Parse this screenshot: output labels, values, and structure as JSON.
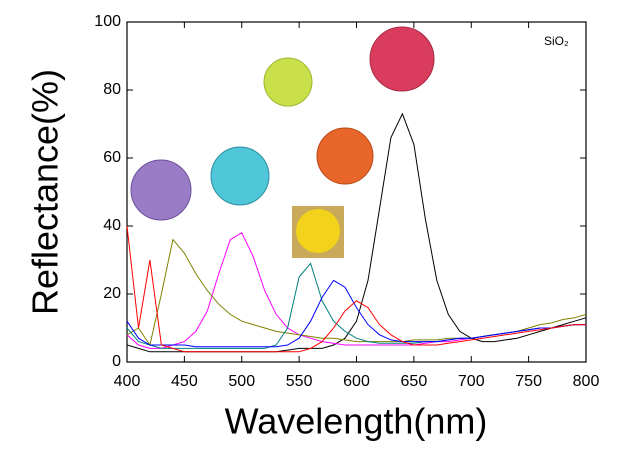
{
  "chart_data": {
    "type": "line",
    "annotation": "SiO₂",
    "x_label": "Wavelength(nm)",
    "y_label": "Reflectance(%)",
    "x": [
      400,
      410,
      420,
      430,
      440,
      450,
      460,
      470,
      480,
      490,
      500,
      510,
      520,
      530,
      540,
      550,
      560,
      570,
      580,
      590,
      600,
      610,
      620,
      630,
      640,
      650,
      660,
      670,
      680,
      690,
      700,
      710,
      720,
      730,
      740,
      750,
      760,
      770,
      780,
      790,
      800
    ],
    "series": [
      {
        "color": "#000000",
        "values": [
          5,
          4,
          3,
          3,
          3,
          3,
          3,
          3,
          3,
          3,
          3,
          3,
          3,
          3,
          3.5,
          4,
          4,
          4,
          5,
          7,
          12,
          24,
          45,
          66,
          73,
          64,
          42,
          24,
          14,
          9,
          7,
          6,
          6,
          6.5,
          7,
          8,
          9,
          10,
          11,
          12,
          13
        ]
      },
      {
        "color": "#ff00ff",
        "values": [
          8,
          5,
          4,
          4,
          5,
          6,
          9,
          15,
          26,
          36,
          38,
          31,
          21,
          14,
          10,
          8,
          7,
          6,
          5.5,
          5,
          5,
          5,
          5,
          5,
          5,
          5,
          5.5,
          6,
          6,
          6.5,
          7,
          7.5,
          8,
          8.5,
          9,
          9.5,
          10,
          10,
          10.5,
          11,
          11
        ]
      },
      {
        "color": "#808000",
        "values": [
          8,
          10,
          5,
          20,
          36,
          32,
          26,
          21,
          17,
          14,
          12,
          11,
          10,
          9,
          8.5,
          8,
          7.5,
          7,
          7,
          6.5,
          6,
          6,
          6,
          6,
          6,
          6.5,
          6.5,
          6.5,
          7,
          7,
          7,
          7.5,
          8,
          8.5,
          9,
          10,
          11,
          11.5,
          12.5,
          13,
          14
        ]
      },
      {
        "color": "#008080",
        "values": [
          10,
          6,
          5,
          4,
          4,
          4,
          4,
          4,
          4,
          4,
          4,
          4,
          4,
          5,
          10,
          25,
          29,
          18,
          12,
          9,
          7,
          6,
          5.5,
          5.5,
          5.5,
          5.5,
          6,
          6,
          6.5,
          7,
          7,
          7.5,
          8,
          8.5,
          9,
          9.5,
          10,
          10,
          10.5,
          11,
          11
        ]
      },
      {
        "color": "#0000ff",
        "values": [
          12,
          7,
          5,
          5,
          5,
          5,
          4.5,
          4.5,
          4.5,
          4.5,
          4.5,
          4.5,
          4.5,
          4.5,
          5,
          7,
          12,
          19,
          24,
          22,
          16,
          11,
          8,
          6.5,
          6,
          6,
          6,
          6,
          6.5,
          7,
          7,
          7.5,
          8,
          8.5,
          9,
          9.5,
          10,
          10,
          10.5,
          11,
          11
        ]
      },
      {
        "color": "#ff0000",
        "values": [
          40,
          10,
          30,
          5,
          4,
          3,
          3,
          3,
          3,
          3,
          3,
          3,
          3,
          3,
          3,
          3,
          4,
          6,
          10,
          15,
          18,
          16,
          11,
          8,
          6,
          5,
          5,
          5,
          5.5,
          6,
          6.5,
          7,
          7.5,
          8,
          8.5,
          9,
          9.5,
          10,
          10.5,
          11,
          11
        ]
      }
    ],
    "xlim": [
      400,
      800
    ],
    "ylim": [
      0,
      100
    ],
    "xticks": [
      400,
      450,
      500,
      550,
      600,
      650,
      700,
      750,
      800
    ],
    "yticks": [
      0,
      20,
      40,
      60,
      80,
      100
    ],
    "grid": false
  }
}
